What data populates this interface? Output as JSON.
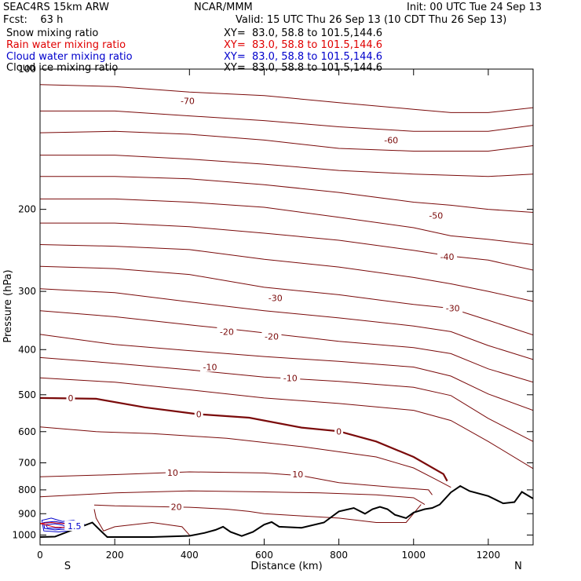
{
  "header": {
    "model": "SEAC4RS 15km ARW",
    "center": "NCAR/MMM",
    "init": "Init: 00 UTC Tue 24 Sep 13",
    "fcst": "Fcst:    63 h",
    "valid": "Valid: 15 UTC Thu 26 Sep 13 (10 CDT Thu 26 Sep 13)"
  },
  "fields": [
    {
      "label": "Snow mixing ratio",
      "xy": "XY=  83.0, 58.8 to 101.5,144.6",
      "color": "#000000"
    },
    {
      "label": "Rain water mixing ratio",
      "xy": "XY=  83.0, 58.8 to 101.5,144.6",
      "color": "#e00000"
    },
    {
      "label": "Cloud water mixing ratio",
      "xy": "XY=  83.0, 58.8 to 101.5,144.6",
      "color": "#0000cc"
    },
    {
      "label": "Cloud ice mixing ratio",
      "xy": "XY=  83.0, 58.8 to 101.5,144.6",
      "color": "#000000"
    }
  ],
  "chart_data": {
    "type": "cross-section contour",
    "xlabel": "Distance (km)",
    "ylabel": "Pressure (hPa)",
    "xlim": [
      0,
      1320
    ],
    "ylim": [
      1050,
      100
    ],
    "y_scale": "log-pressure",
    "x_ticks": [
      0,
      200,
      400,
      600,
      800,
      1000,
      1200
    ],
    "y_ticks": [
      100,
      200,
      300,
      400,
      500,
      600,
      700,
      800,
      900,
      1000
    ],
    "y_tick_labels": [
      "100",
      "200",
      "300",
      "400",
      "500",
      "600",
      "700",
      "800",
      "900",
      "1000"
    ],
    "x_tick_labels": [
      "0",
      "200",
      "400",
      "600",
      "800",
      "1000",
      "1200"
    ],
    "end_labels": {
      "left": "S",
      "right": "N"
    },
    "colors": {
      "isotherm": "#7a0a0a",
      "terrain": "#000000",
      "cloud_water": "#0000cc",
      "rain": "#e00000"
    },
    "isotherm_labels": [
      {
        "text": "-70",
        "x": 395,
        "p": 117
      },
      {
        "text": "-60",
        "x": 940,
        "p": 142
      },
      {
        "text": "-50",
        "x": 1060,
        "p": 206
      },
      {
        "text": "-40",
        "x": 1090,
        "p": 253
      },
      {
        "text": "-30",
        "x": 630,
        "p": 310
      },
      {
        "text": "-30",
        "x": 1105,
        "p": 326
      },
      {
        "text": "-20",
        "x": 500,
        "p": 366
      },
      {
        "text": "-20",
        "x": 620,
        "p": 375
      },
      {
        "text": "-10",
        "x": 455,
        "p": 436
      },
      {
        "text": "-10",
        "x": 670,
        "p": 460
      },
      {
        "text": "0",
        "x": 82,
        "p": 508
      },
      {
        "text": "0",
        "x": 425,
        "p": 550
      },
      {
        "text": "0",
        "x": 800,
        "p": 599
      },
      {
        "text": "10",
        "x": 355,
        "p": 735
      },
      {
        "text": "10",
        "x": 690,
        "p": 740
      },
      {
        "text": "20",
        "x": 365,
        "p": 870
      },
      {
        "text": "1.5",
        "x": 92,
        "p": 957
      }
    ],
    "isotherms": [
      {
        "level": -70,
        "pts": [
          [
            0,
            108
          ],
          [
            200,
            109
          ],
          [
            400,
            112
          ],
          [
            600,
            114
          ],
          [
            800,
            118
          ],
          [
            1000,
            122
          ],
          [
            1100,
            124
          ],
          [
            1200,
            124
          ],
          [
            1320,
            121
          ]
        ]
      },
      {
        "level": -65,
        "pts": [
          [
            0,
            123
          ],
          [
            200,
            123
          ],
          [
            400,
            126
          ],
          [
            600,
            129
          ],
          [
            800,
            133
          ],
          [
            1000,
            136
          ],
          [
            1200,
            136
          ],
          [
            1320,
            132
          ]
        ]
      },
      {
        "level": -60,
        "pts": [
          [
            0,
            137
          ],
          [
            200,
            136
          ],
          [
            400,
            138
          ],
          [
            600,
            142
          ],
          [
            800,
            148
          ],
          [
            1000,
            150
          ],
          [
            1200,
            150
          ],
          [
            1320,
            146
          ]
        ]
      },
      {
        "level": -55,
        "pts": [
          [
            0,
            153
          ],
          [
            200,
            153
          ],
          [
            400,
            156
          ],
          [
            600,
            160
          ],
          [
            800,
            165
          ],
          [
            1000,
            168
          ],
          [
            1200,
            170
          ],
          [
            1320,
            168
          ]
        ]
      },
      {
        "level": -50,
        "pts": [
          [
            0,
            170
          ],
          [
            200,
            170
          ],
          [
            400,
            172
          ],
          [
            600,
            177
          ],
          [
            800,
            184
          ],
          [
            1000,
            193
          ],
          [
            1100,
            196
          ],
          [
            1200,
            200
          ],
          [
            1320,
            203
          ]
        ]
      },
      {
        "level": -45,
        "pts": [
          [
            0,
            190
          ],
          [
            200,
            190
          ],
          [
            400,
            193
          ],
          [
            600,
            198
          ],
          [
            800,
            208
          ],
          [
            1000,
            219
          ],
          [
            1100,
            228
          ],
          [
            1200,
            232
          ],
          [
            1320,
            238
          ]
        ]
      },
      {
        "level": -40,
        "pts": [
          [
            0,
            214
          ],
          [
            200,
            214
          ],
          [
            400,
            218
          ],
          [
            600,
            225
          ],
          [
            800,
            233
          ],
          [
            1000,
            245
          ],
          [
            1100,
            252
          ],
          [
            1200,
            257
          ],
          [
            1320,
            270
          ]
        ]
      },
      {
        "level": -35,
        "pts": [
          [
            0,
            238
          ],
          [
            200,
            240
          ],
          [
            400,
            244
          ],
          [
            600,
            256
          ],
          [
            800,
            266
          ],
          [
            1000,
            280
          ],
          [
            1100,
            289
          ],
          [
            1200,
            300
          ],
          [
            1320,
            315
          ]
        ]
      },
      {
        "level": -30,
        "pts": [
          [
            0,
            265
          ],
          [
            200,
            268
          ],
          [
            400,
            276
          ],
          [
            600,
            294
          ],
          [
            800,
            305
          ],
          [
            1000,
            320
          ],
          [
            1100,
            326
          ],
          [
            1200,
            346
          ],
          [
            1320,
            372
          ]
        ]
      },
      {
        "level": -25,
        "pts": [
          [
            0,
            296
          ],
          [
            200,
            302
          ],
          [
            400,
            316
          ],
          [
            600,
            330
          ],
          [
            800,
            342
          ],
          [
            1000,
            356
          ],
          [
            1100,
            366
          ],
          [
            1200,
            392
          ],
          [
            1320,
            420
          ]
        ]
      },
      {
        "level": -20,
        "pts": [
          [
            0,
            330
          ],
          [
            200,
            340
          ],
          [
            400,
            354
          ],
          [
            520,
            362
          ],
          [
            700,
            376
          ],
          [
            800,
            384
          ],
          [
            1000,
            396
          ],
          [
            1100,
            408
          ],
          [
            1200,
            440
          ],
          [
            1320,
            470
          ]
        ]
      },
      {
        "level": -15,
        "pts": [
          [
            0,
            371
          ],
          [
            200,
            390
          ],
          [
            400,
            402
          ],
          [
            600,
            414
          ],
          [
            800,
            424
          ],
          [
            1000,
            436
          ],
          [
            1100,
            456
          ],
          [
            1200,
            498
          ],
          [
            1320,
            540
          ]
        ]
      },
      {
        "level": -10,
        "pts": [
          [
            0,
            416
          ],
          [
            200,
            428
          ],
          [
            400,
            442
          ],
          [
            600,
            458
          ],
          [
            800,
            468
          ],
          [
            1000,
            482
          ],
          [
            1100,
            502
          ],
          [
            1200,
            562
          ],
          [
            1320,
            630
          ]
        ]
      },
      {
        "level": -5,
        "pts": [
          [
            0,
            460
          ],
          [
            200,
            470
          ],
          [
            400,
            488
          ],
          [
            600,
            508
          ],
          [
            800,
            522
          ],
          [
            1000,
            540
          ],
          [
            1100,
            568
          ],
          [
            1200,
            630
          ],
          [
            1320,
            720
          ]
        ]
      },
      {
        "level": 0,
        "bold": true,
        "pts": [
          [
            0,
            508
          ],
          [
            150,
            510
          ],
          [
            280,
            532
          ],
          [
            420,
            550
          ],
          [
            560,
            560
          ],
          [
            700,
            588
          ],
          [
            800,
            599
          ],
          [
            900,
            630
          ],
          [
            1000,
            680
          ],
          [
            1080,
            740
          ],
          [
            1090,
            766
          ]
        ]
      },
      {
        "level": 5,
        "pts": [
          [
            0,
            586
          ],
          [
            150,
            600
          ],
          [
            300,
            606
          ],
          [
            500,
            620
          ],
          [
            700,
            646
          ],
          [
            900,
            680
          ],
          [
            1000,
            718
          ],
          [
            1060,
            760
          ],
          [
            1100,
            790
          ]
        ]
      },
      {
        "level": 10,
        "pts": [
          [
            0,
            750
          ],
          [
            200,
            742
          ],
          [
            400,
            732
          ],
          [
            600,
            736
          ],
          [
            700,
            746
          ],
          [
            800,
            772
          ],
          [
            950,
            790
          ],
          [
            1040,
            800
          ],
          [
            1050,
            820
          ]
        ]
      },
      {
        "level": 15,
        "pts": [
          [
            0,
            828
          ],
          [
            200,
            812
          ],
          [
            400,
            804
          ],
          [
            600,
            808
          ],
          [
            750,
            812
          ],
          [
            900,
            820
          ],
          [
            1000,
            832
          ],
          [
            1030,
            860
          ]
        ]
      },
      {
        "level": 20,
        "pts": [
          [
            145,
            862
          ],
          [
            200,
            866
          ],
          [
            400,
            872
          ],
          [
            500,
            880
          ],
          [
            560,
            890
          ],
          [
            600,
            900
          ],
          [
            700,
            910
          ],
          [
            800,
            920
          ],
          [
            900,
            940
          ],
          [
            980,
            940
          ],
          [
            1020,
            860
          ]
        ]
      },
      {
        "level": 25,
        "pts": [
          [
            145,
            880
          ],
          [
            150,
            920
          ],
          [
            170,
            980
          ],
          [
            200,
            960
          ],
          [
            300,
            940
          ],
          [
            380,
            960
          ],
          [
            400,
            1000
          ]
        ]
      }
    ],
    "terrain": {
      "pts": [
        [
          0,
          1010
        ],
        [
          40,
          1008
        ],
        [
          80,
          980
        ],
        [
          110,
          960
        ],
        [
          140,
          940
        ],
        [
          160,
          975
        ],
        [
          180,
          1010
        ],
        [
          300,
          1010
        ],
        [
          400,
          1004
        ],
        [
          440,
          990
        ],
        [
          470,
          975
        ],
        [
          490,
          960
        ],
        [
          510,
          985
        ],
        [
          540,
          1005
        ],
        [
          570,
          985
        ],
        [
          600,
          950
        ],
        [
          620,
          938
        ],
        [
          640,
          960
        ],
        [
          700,
          965
        ],
        [
          760,
          940
        ],
        [
          800,
          890
        ],
        [
          840,
          875
        ],
        [
          870,
          900
        ],
        [
          890,
          880
        ],
        [
          910,
          870
        ],
        [
          930,
          880
        ],
        [
          950,
          905
        ],
        [
          980,
          920
        ],
        [
          1000,
          895
        ],
        [
          1030,
          880
        ],
        [
          1050,
          875
        ],
        [
          1070,
          860
        ],
        [
          1100,
          810
        ],
        [
          1125,
          785
        ],
        [
          1150,
          805
        ],
        [
          1200,
          825
        ],
        [
          1240,
          855
        ],
        [
          1270,
          850
        ],
        [
          1290,
          808
        ],
        [
          1320,
          835
        ]
      ]
    },
    "cloud_contours": [
      {
        "color": "#0000cc",
        "pts": [
          [
            5,
            930
          ],
          [
            30,
            920
          ],
          [
            60,
            935
          ],
          [
            90,
            930
          ],
          [
            120,
            950
          ],
          [
            95,
            975
          ],
          [
            50,
            985
          ],
          [
            10,
            980
          ]
        ]
      },
      {
        "color": "#0000cc",
        "pts": [
          [
            10,
            940
          ],
          [
            40,
            935
          ],
          [
            70,
            945
          ],
          [
            95,
            955
          ],
          [
            75,
            970
          ],
          [
            40,
            975
          ],
          [
            12,
            968
          ]
        ]
      },
      {
        "color": "#0000cc",
        "pts": [
          [
            15,
            950
          ],
          [
            40,
            946
          ],
          [
            60,
            952
          ],
          [
            70,
            960
          ],
          [
            50,
            968
          ],
          [
            20,
            965
          ]
        ]
      },
      {
        "color": "#e00000",
        "pts": [
          [
            0,
            945
          ],
          [
            30,
            940
          ],
          [
            80,
            948
          ],
          [
            110,
            955
          ],
          [
            90,
            965
          ],
          [
            40,
            962
          ]
        ]
      }
    ]
  }
}
